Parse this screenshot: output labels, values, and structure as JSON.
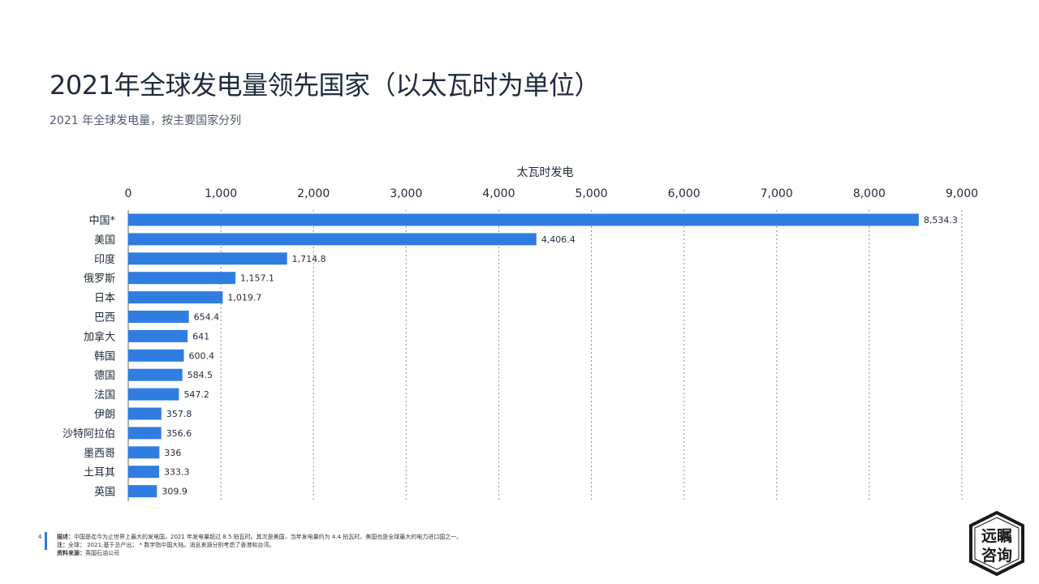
{
  "header": {
    "title": "2021年全球发电量领先国家（以太瓦时为单位）",
    "subtitle": "2021 年全球发电量，按主要国家分列"
  },
  "chart_data": {
    "type": "bar",
    "orientation": "horizontal",
    "xlabel": "太瓦时发电",
    "xlim": [
      0,
      9000
    ],
    "xticks": [
      0,
      1000,
      2000,
      3000,
      4000,
      5000,
      6000,
      7000,
      8000,
      9000
    ],
    "xtick_labels": [
      "0",
      "1,000",
      "2,000",
      "3,000",
      "4,000",
      "5,000",
      "6,000",
      "7,000",
      "8,000",
      "9,000"
    ],
    "grid": "vertical dotted",
    "bar_color": "#2f7de1",
    "categories": [
      "中国*",
      "美国",
      "印度",
      "俄罗斯",
      "日本",
      "巴西",
      "加拿大",
      "韩国",
      "德国",
      "法国",
      "伊朗",
      "沙特阿拉伯",
      "墨西哥",
      "土耳其",
      "英国"
    ],
    "values": [
      8534.3,
      4406.4,
      1714.8,
      1157.1,
      1019.7,
      654.4,
      641,
      600.4,
      584.5,
      547.2,
      357.8,
      356.6,
      336,
      333.3,
      309.9
    ],
    "value_labels": [
      "8,534.3",
      "4,406.4",
      "1,714.8",
      "1,157.1",
      "1,019.7",
      "654.4",
      "641",
      "600.4",
      "584.5",
      "547.2",
      "357.8",
      "356.6",
      "336",
      "333.3",
      "309.9"
    ]
  },
  "footer": {
    "page_number": "4",
    "desc_label": "描述：",
    "desc_text": "中国是迄今为止世界上最大的发电国，2021 年发电量超过 8.5 拍瓦时。其次是美国，当年发电量约为 4.4 拍瓦时。美国也是全球最大的电力进口国之一。",
    "note_label": "注：",
    "note_text": "全球； 2021;基于总产出； * 数字指中国大陆。消息来源分别考虑了香港和台湾。",
    "source_label": "资料来源：",
    "source_text": "英国石油公司"
  },
  "logo": {
    "line1": "远瞩",
    "line2": "咨询",
    "color": "#1a1a1a"
  }
}
